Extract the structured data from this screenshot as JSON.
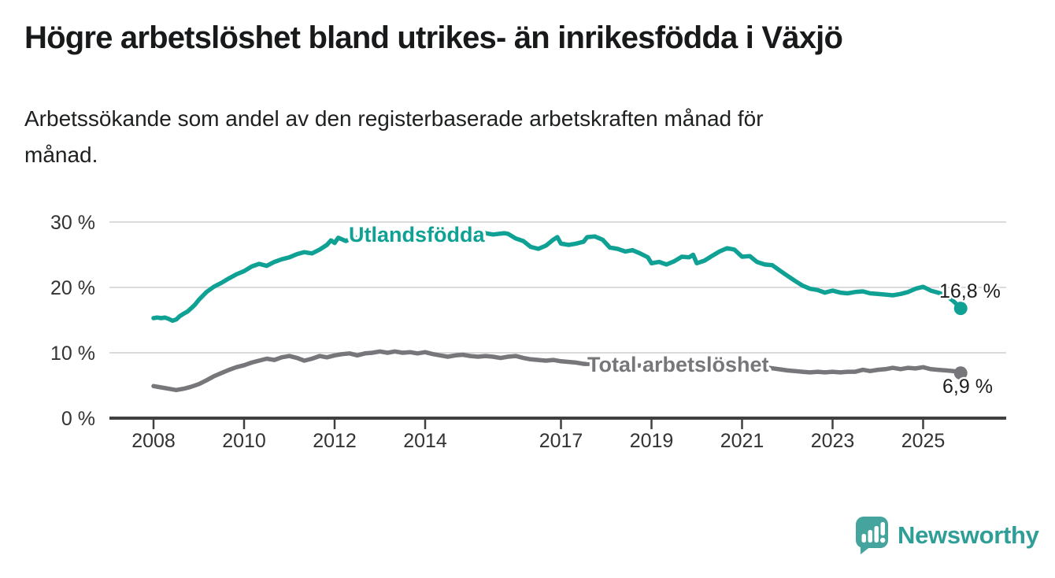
{
  "header": {
    "title": "Högre arbetslöshet bland utrikes- än inrikesfödda i Växjö",
    "subtitle_line1": "Arbetssökande som andel av den registerbaserade arbetskraften månad för",
    "subtitle_line2": "månad."
  },
  "footer": {
    "brand": "Newsworthy",
    "logo_icon": "speech-bubble-bar-chart-icon",
    "brand_text_color": "#2E9E97",
    "logo_fill_color": "#45A49D"
  },
  "chart_data": {
    "type": "line",
    "title": "Högre arbetslöshet bland utrikes- än inrikesfödda i Växjö",
    "subtitle": "Arbetssökande som andel av den registerbaserade arbetskraften månad för månad.",
    "unit": "%",
    "grid": true,
    "legend_position": "inline-labels-on-lines",
    "x_axis": {
      "tick_years": [
        2008,
        2010,
        2012,
        2014,
        2017,
        2019,
        2021,
        2023,
        2025
      ],
      "tick_labels": [
        "2008",
        "2010",
        "2012",
        "2014",
        "2017",
        "2019",
        "2021",
        "2023",
        "2025"
      ],
      "range": [
        2007.85,
        2026.3
      ]
    },
    "y_axis": {
      "tick_values": [
        0,
        10,
        20,
        30
      ],
      "tick_labels": [
        "0 %",
        "10 %",
        "20 %",
        "30 %"
      ],
      "range": [
        0,
        31.5
      ],
      "gridline_values": [
        10,
        20,
        30
      ],
      "gridline_color": "#DBDBDB",
      "axis_color": "#404040",
      "label_color": "#333333"
    },
    "series": [
      {
        "name": "Utlandsfödda",
        "color": "#10A195",
        "end_value": 16.8,
        "end_label": "16,8 %",
        "points": [
          [
            2008.0,
            15.3
          ],
          [
            2008.08,
            15.4
          ],
          [
            2008.17,
            15.3
          ],
          [
            2008.25,
            15.4
          ],
          [
            2008.33,
            15.2
          ],
          [
            2008.42,
            14.9
          ],
          [
            2008.5,
            15.1
          ],
          [
            2008.58,
            15.6
          ],
          [
            2008.67,
            16.0
          ],
          [
            2008.75,
            16.3
          ],
          [
            2008.83,
            16.8
          ],
          [
            2008.92,
            17.4
          ],
          [
            2009.0,
            18.1
          ],
          [
            2009.17,
            19.3
          ],
          [
            2009.33,
            20.1
          ],
          [
            2009.5,
            20.7
          ],
          [
            2009.67,
            21.4
          ],
          [
            2009.83,
            22.0
          ],
          [
            2010.0,
            22.5
          ],
          [
            2010.17,
            23.2
          ],
          [
            2010.33,
            23.6
          ],
          [
            2010.5,
            23.3
          ],
          [
            2010.67,
            23.9
          ],
          [
            2010.83,
            24.3
          ],
          [
            2011.0,
            24.6
          ],
          [
            2011.17,
            25.1
          ],
          [
            2011.33,
            25.4
          ],
          [
            2011.5,
            25.2
          ],
          [
            2011.67,
            25.8
          ],
          [
            2011.83,
            26.5
          ],
          [
            2011.92,
            27.2
          ],
          [
            2012.0,
            26.8
          ],
          [
            2012.08,
            27.6
          ],
          [
            2012.25,
            27.1
          ],
          [
            2012.42,
            27.7
          ],
          [
            2012.58,
            27.4
          ],
          [
            2012.75,
            27.8
          ],
          [
            2013.0,
            27.5
          ],
          [
            2013.25,
            28.0
          ],
          [
            2013.5,
            27.7
          ],
          [
            2013.75,
            28.1
          ],
          [
            2014.0,
            28.3
          ],
          [
            2014.08,
            28.4
          ],
          [
            2014.17,
            27.6
          ],
          [
            2014.33,
            28.0
          ],
          [
            2014.5,
            27.8
          ],
          [
            2014.75,
            28.1
          ],
          [
            2015.0,
            28.2
          ],
          [
            2015.25,
            28.4
          ],
          [
            2015.5,
            28.1
          ],
          [
            2015.75,
            28.3
          ],
          [
            2015.83,
            28.2
          ],
          [
            2016.0,
            27.5
          ],
          [
            2016.17,
            27.1
          ],
          [
            2016.33,
            26.2
          ],
          [
            2016.5,
            25.9
          ],
          [
            2016.67,
            26.4
          ],
          [
            2016.83,
            27.3
          ],
          [
            2016.92,
            27.7
          ],
          [
            2017.0,
            26.7
          ],
          [
            2017.17,
            26.5
          ],
          [
            2017.33,
            26.7
          ],
          [
            2017.5,
            27.0
          ],
          [
            2017.58,
            27.7
          ],
          [
            2017.75,
            27.8
          ],
          [
            2017.92,
            27.3
          ],
          [
            2018.08,
            26.1
          ],
          [
            2018.25,
            25.9
          ],
          [
            2018.42,
            25.5
          ],
          [
            2018.58,
            25.7
          ],
          [
            2018.75,
            25.2
          ],
          [
            2018.92,
            24.6
          ],
          [
            2019.0,
            23.7
          ],
          [
            2019.17,
            23.9
          ],
          [
            2019.33,
            23.5
          ],
          [
            2019.5,
            24.0
          ],
          [
            2019.67,
            24.7
          ],
          [
            2019.83,
            24.6
          ],
          [
            2019.92,
            25.0
          ],
          [
            2020.0,
            23.7
          ],
          [
            2020.17,
            24.1
          ],
          [
            2020.33,
            24.8
          ],
          [
            2020.5,
            25.5
          ],
          [
            2020.67,
            26.0
          ],
          [
            2020.83,
            25.8
          ],
          [
            2021.0,
            24.7
          ],
          [
            2021.17,
            24.8
          ],
          [
            2021.33,
            23.9
          ],
          [
            2021.5,
            23.5
          ],
          [
            2021.67,
            23.4
          ],
          [
            2021.83,
            22.6
          ],
          [
            2022.0,
            21.8
          ],
          [
            2022.17,
            21.0
          ],
          [
            2022.33,
            20.3
          ],
          [
            2022.5,
            19.8
          ],
          [
            2022.67,
            19.6
          ],
          [
            2022.83,
            19.2
          ],
          [
            2023.0,
            19.5
          ],
          [
            2023.17,
            19.2
          ],
          [
            2023.33,
            19.1
          ],
          [
            2023.5,
            19.3
          ],
          [
            2023.67,
            19.4
          ],
          [
            2023.83,
            19.1
          ],
          [
            2024.0,
            19.0
          ],
          [
            2024.17,
            18.9
          ],
          [
            2024.33,
            18.8
          ],
          [
            2024.5,
            19.0
          ],
          [
            2024.67,
            19.3
          ],
          [
            2024.83,
            19.8
          ],
          [
            2025.0,
            20.1
          ],
          [
            2025.17,
            19.5
          ],
          [
            2025.33,
            19.2
          ],
          [
            2025.5,
            18.8
          ],
          [
            2025.67,
            17.9
          ],
          [
            2025.83,
            16.8
          ]
        ]
      },
      {
        "name": "Total arbetslöshet",
        "color": "#77767B",
        "end_value": 6.9,
        "end_label": "6,9 %",
        "points": [
          [
            2008.0,
            4.9
          ],
          [
            2008.17,
            4.7
          ],
          [
            2008.33,
            4.5
          ],
          [
            2008.5,
            4.3
          ],
          [
            2008.67,
            4.5
          ],
          [
            2008.83,
            4.8
          ],
          [
            2009.0,
            5.2
          ],
          [
            2009.17,
            5.8
          ],
          [
            2009.33,
            6.4
          ],
          [
            2009.5,
            6.9
          ],
          [
            2009.67,
            7.4
          ],
          [
            2009.83,
            7.8
          ],
          [
            2010.0,
            8.1
          ],
          [
            2010.17,
            8.5
          ],
          [
            2010.33,
            8.8
          ],
          [
            2010.5,
            9.1
          ],
          [
            2010.67,
            8.9
          ],
          [
            2010.83,
            9.3
          ],
          [
            2011.0,
            9.5
          ],
          [
            2011.17,
            9.2
          ],
          [
            2011.33,
            8.8
          ],
          [
            2011.5,
            9.1
          ],
          [
            2011.67,
            9.5
          ],
          [
            2011.83,
            9.3
          ],
          [
            2012.0,
            9.6
          ],
          [
            2012.17,
            9.8
          ],
          [
            2012.33,
            9.9
          ],
          [
            2012.5,
            9.6
          ],
          [
            2012.67,
            9.9
          ],
          [
            2012.83,
            10.0
          ],
          [
            2013.0,
            10.2
          ],
          [
            2013.17,
            10.0
          ],
          [
            2013.33,
            10.2
          ],
          [
            2013.5,
            10.0
          ],
          [
            2013.67,
            10.1
          ],
          [
            2013.83,
            9.9
          ],
          [
            2014.0,
            10.1
          ],
          [
            2014.17,
            9.8
          ],
          [
            2014.33,
            9.6
          ],
          [
            2014.5,
            9.4
          ],
          [
            2014.67,
            9.6
          ],
          [
            2014.83,
            9.7
          ],
          [
            2015.0,
            9.5
          ],
          [
            2015.17,
            9.4
          ],
          [
            2015.33,
            9.5
          ],
          [
            2015.5,
            9.4
          ],
          [
            2015.67,
            9.2
          ],
          [
            2015.83,
            9.4
          ],
          [
            2016.0,
            9.5
          ],
          [
            2016.17,
            9.2
          ],
          [
            2016.33,
            9.0
          ],
          [
            2016.5,
            8.9
          ],
          [
            2016.67,
            8.8
          ],
          [
            2016.83,
            8.9
          ],
          [
            2017.0,
            8.7
          ],
          [
            2017.17,
            8.6
          ],
          [
            2017.33,
            8.5
          ],
          [
            2017.5,
            8.3
          ],
          [
            2018.0,
            8.3
          ],
          [
            2018.5,
            8.1
          ],
          [
            2019.0,
            8.0
          ],
          [
            2019.5,
            7.9
          ],
          [
            2020.0,
            8.1
          ],
          [
            2020.5,
            8.7
          ],
          [
            2021.0,
            8.4
          ],
          [
            2021.5,
            7.8
          ],
          [
            2022.0,
            7.3
          ],
          [
            2022.33,
            7.1
          ],
          [
            2022.5,
            7.0
          ],
          [
            2022.67,
            7.1
          ],
          [
            2022.83,
            7.0
          ],
          [
            2023.0,
            7.1
          ],
          [
            2023.17,
            7.0
          ],
          [
            2023.33,
            7.1
          ],
          [
            2023.5,
            7.1
          ],
          [
            2023.67,
            7.4
          ],
          [
            2023.83,
            7.2
          ],
          [
            2024.0,
            7.4
          ],
          [
            2024.17,
            7.5
          ],
          [
            2024.33,
            7.7
          ],
          [
            2024.5,
            7.5
          ],
          [
            2024.67,
            7.7
          ],
          [
            2024.83,
            7.6
          ],
          [
            2025.0,
            7.8
          ],
          [
            2025.17,
            7.5
          ],
          [
            2025.33,
            7.4
          ],
          [
            2025.5,
            7.3
          ],
          [
            2025.67,
            7.2
          ],
          [
            2025.83,
            6.9
          ]
        ]
      }
    ]
  }
}
